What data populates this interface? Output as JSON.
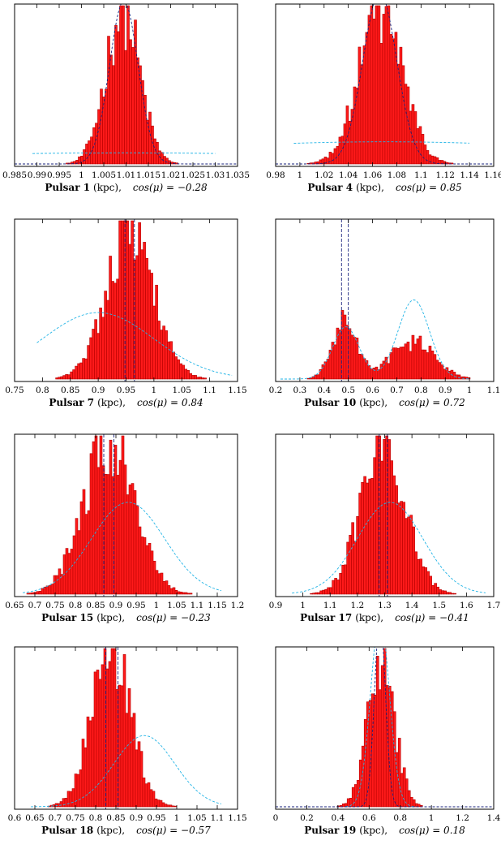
{
  "chart_data": [
    {
      "type": "bar",
      "title": "",
      "caption": {
        "pulsar": "Pulsar 1",
        "unit": "(kpc),",
        "cos_label": "cos(μ) = −0.28"
      },
      "xlim": [
        0.985,
        1.035
      ],
      "xticks": [
        0.985,
        0.99,
        0.995,
        1,
        1.005,
        1.01,
        1.015,
        1.02,
        1.025,
        1.03,
        1.035
      ],
      "xtick_labels": [
        "0.985",
        "0.99",
        "0.995",
        "1",
        "1.005",
        "1.01",
        "1.015",
        "1.02",
        "1.025",
        "1.03",
        "1.035"
      ],
      "hist": {
        "range": [
          0.99,
          1.03
        ],
        "peaks": [
          {
            "mu": 1.009,
            "sigma": 0.0038,
            "amp": 1.0
          }
        ]
      },
      "dashed_dark": [
        {
          "mu": 1.0095,
          "sigma": 0.0032,
          "amp": 1.03
        }
      ],
      "dashed_light": {
        "mu": 1.01,
        "sigma": 0.06,
        "amp": 0.07,
        "range": [
          0.989,
          1.03
        ]
      },
      "vlines": []
    },
    {
      "type": "bar",
      "title": "",
      "caption": {
        "pulsar": "Pulsar 4",
        "unit": "(kpc),",
        "cos_label": "cos(μ) = 0.85"
      },
      "xlim": [
        0.98,
        1.16
      ],
      "xticks": [
        0.98,
        1,
        1.02,
        1.04,
        1.06,
        1.08,
        1.1,
        1.12,
        1.14,
        1.16
      ],
      "xtick_labels": [
        "0.98",
        "1",
        "1.02",
        "1.04",
        "1.06",
        "1.08",
        "1.1",
        "1.12",
        "1.14",
        "1.16"
      ],
      "hist": {
        "range": [
          0.99,
          1.13
        ],
        "peaks": [
          {
            "mu": 1.066,
            "sigma": 0.018,
            "amp": 1.0
          }
        ]
      },
      "dashed_dark": [
        {
          "mu": 1.066,
          "sigma": 0.014,
          "amp": 1.08
        }
      ],
      "dashed_light": {
        "mu": 1.07,
        "sigma": 0.2,
        "amp": 0.14,
        "range": [
          0.995,
          1.14
        ]
      },
      "vlines": []
    },
    {
      "type": "bar",
      "title": "",
      "caption": {
        "pulsar": "Pulsar 7",
        "unit": "(kpc),",
        "cos_label": "cos(μ) = 0.84"
      },
      "xlim": [
        0.75,
        1.15
      ],
      "xticks": [
        0.75,
        0.8,
        0.85,
        0.9,
        0.95,
        1,
        1.05,
        1.1,
        1.15
      ],
      "xtick_labels": [
        "0.75",
        "0.8",
        "0.85",
        "0.9",
        "0.95",
        "1",
        "1.05",
        "1.1",
        "1.15"
      ],
      "hist": {
        "range": [
          0.78,
          1.1
        ],
        "peaks": [
          {
            "mu": 0.955,
            "sigma": 0.042,
            "amp": 1.0
          }
        ]
      },
      "dashed_dark": [],
      "dashed_light": {
        "mu": 0.9,
        "sigma": 0.1,
        "amp": 0.42,
        "range": [
          0.79,
          1.14
        ]
      },
      "vlines": [
        0.948,
        0.965
      ]
    },
    {
      "type": "bar",
      "title": "",
      "caption": {
        "pulsar": "Pulsar 10",
        "unit": "(kpc),",
        "cos_label": "cos(μ) = 0.72"
      },
      "xlim": [
        0.2,
        1.1
      ],
      "xticks": [
        0.2,
        0.3,
        0.4,
        0.5,
        0.6,
        0.7,
        0.8,
        0.9,
        1,
        1.1
      ],
      "xtick_labels": [
        "0.2",
        "0.3",
        "0.4",
        "0.5",
        "0.6",
        "0.7",
        "0.8",
        "0.9",
        "1",
        "1.1"
      ],
      "hist": {
        "range": [
          0.25,
          1.0
        ],
        "peaks": [
          {
            "mu": 0.48,
            "sigma": 0.05,
            "amp": 0.38
          },
          {
            "mu": 0.76,
            "sigma": 0.09,
            "amp": 0.24
          }
        ]
      },
      "dashed_dark": [],
      "dashed_light": {
        "components": [
          {
            "mu": 0.49,
            "sigma": 0.055,
            "amp": 0.33
          },
          {
            "mu": 0.77,
            "sigma": 0.065,
            "amp": 0.5
          }
        ],
        "range": [
          0.22,
          1.0
        ]
      },
      "vlines": [
        0.472,
        0.5
      ]
    },
    {
      "type": "bar",
      "title": "",
      "caption": {
        "pulsar": "Pulsar 15",
        "unit": "(kpc),",
        "cos_label": "cos(μ) = −0.23"
      },
      "xlim": [
        0.65,
        1.2
      ],
      "xticks": [
        0.65,
        0.7,
        0.75,
        0.8,
        0.85,
        0.9,
        0.95,
        1,
        1.05,
        1.1,
        1.15,
        1.2
      ],
      "xtick_labels": [
        "0.65",
        "0.7",
        "0.75",
        "0.8",
        "0.85",
        "0.9",
        "0.95",
        "1",
        "1.05",
        "1.1",
        "1.15",
        "1.2"
      ],
      "hist": {
        "range": [
          0.68,
          1.12
        ],
        "peaks": [
          {
            "mu": 0.88,
            "sigma": 0.062,
            "amp": 1.0
          }
        ]
      },
      "dashed_dark": [],
      "dashed_light": {
        "mu": 0.93,
        "sigma": 0.09,
        "amp": 0.58,
        "range": [
          0.67,
          1.16
        ]
      },
      "vlines": [
        0.87,
        0.895
      ]
    },
    {
      "type": "bar",
      "title": "",
      "caption": {
        "pulsar": "Pulsar 17",
        "unit": "(kpc),",
        "cos_label": "cos(μ) = −0.41"
      },
      "xlim": [
        0.9,
        1.7
      ],
      "xticks": [
        0.9,
        1,
        1.1,
        1.2,
        1.3,
        1.4,
        1.5,
        1.6,
        1.7
      ],
      "xtick_labels": [
        "0.9",
        "1",
        "1.1",
        "1.2",
        "1.3",
        "1.4",
        "1.5",
        "1.6",
        "1.7"
      ],
      "hist": {
        "range": [
          1.0,
          1.6
        ],
        "peaks": [
          {
            "mu": 1.29,
            "sigma": 0.08,
            "amp": 1.0
          }
        ]
      },
      "dashed_dark": [],
      "dashed_light": {
        "mu": 1.32,
        "sigma": 0.12,
        "amp": 0.58,
        "range": [
          0.96,
          1.67
        ]
      },
      "vlines": [
        1.28,
        1.31
      ]
    },
    {
      "type": "bar",
      "title": "",
      "caption": {
        "pulsar": "Pulsar 18",
        "unit": "(kpc),",
        "cos_label": "cos(μ) = −0.57"
      },
      "xlim": [
        0.6,
        1.15
      ],
      "xticks": [
        0.6,
        0.65,
        0.7,
        0.75,
        0.8,
        0.85,
        0.9,
        0.95,
        1,
        1.05,
        1.1,
        1.15
      ],
      "xtick_labels": [
        "0.6",
        "0.65",
        "0.7",
        "0.75",
        "0.8",
        "0.85",
        "0.9",
        "0.95",
        "1",
        "1.05",
        "1.1",
        "1.15"
      ],
      "hist": {
        "range": [
          0.64,
          1.05
        ],
        "peaks": [
          {
            "mu": 0.835,
            "sigma": 0.048,
            "amp": 1.0
          }
        ]
      },
      "dashed_dark": [],
      "dashed_light": {
        "mu": 0.92,
        "sigma": 0.075,
        "amp": 0.45,
        "range": [
          0.64,
          1.11
        ]
      },
      "vlines": [
        0.825,
        0.855
      ]
    },
    {
      "type": "bar",
      "title": "",
      "caption": {
        "pulsar": "Pulsar 19",
        "unit": "(kpc),",
        "cos_label": "cos(μ) = 0.18"
      },
      "xlim": [
        0,
        1.4
      ],
      "xticks": [
        0,
        0.2,
        0.4,
        0.6,
        0.8,
        1,
        1.2,
        1.4
      ],
      "xtick_labels": [
        "0",
        "0.2",
        "0.4",
        "0.6",
        "0.8",
        "1",
        "1.2",
        "1.4"
      ],
      "hist": {
        "range": [
          0.1,
          1.1
        ],
        "peaks": [
          {
            "mu": 0.67,
            "sigma": 0.085,
            "amp": 0.95
          }
        ]
      },
      "dashed_dark": [
        {
          "mu": 0.67,
          "sigma": 0.035,
          "amp": 1.2
        }
      ],
      "dashed_light": {
        "mu": 0.67,
        "sigma": 0.06,
        "amp": 1.2,
        "range": [
          0.45,
          0.9
        ]
      },
      "vlines": []
    }
  ]
}
